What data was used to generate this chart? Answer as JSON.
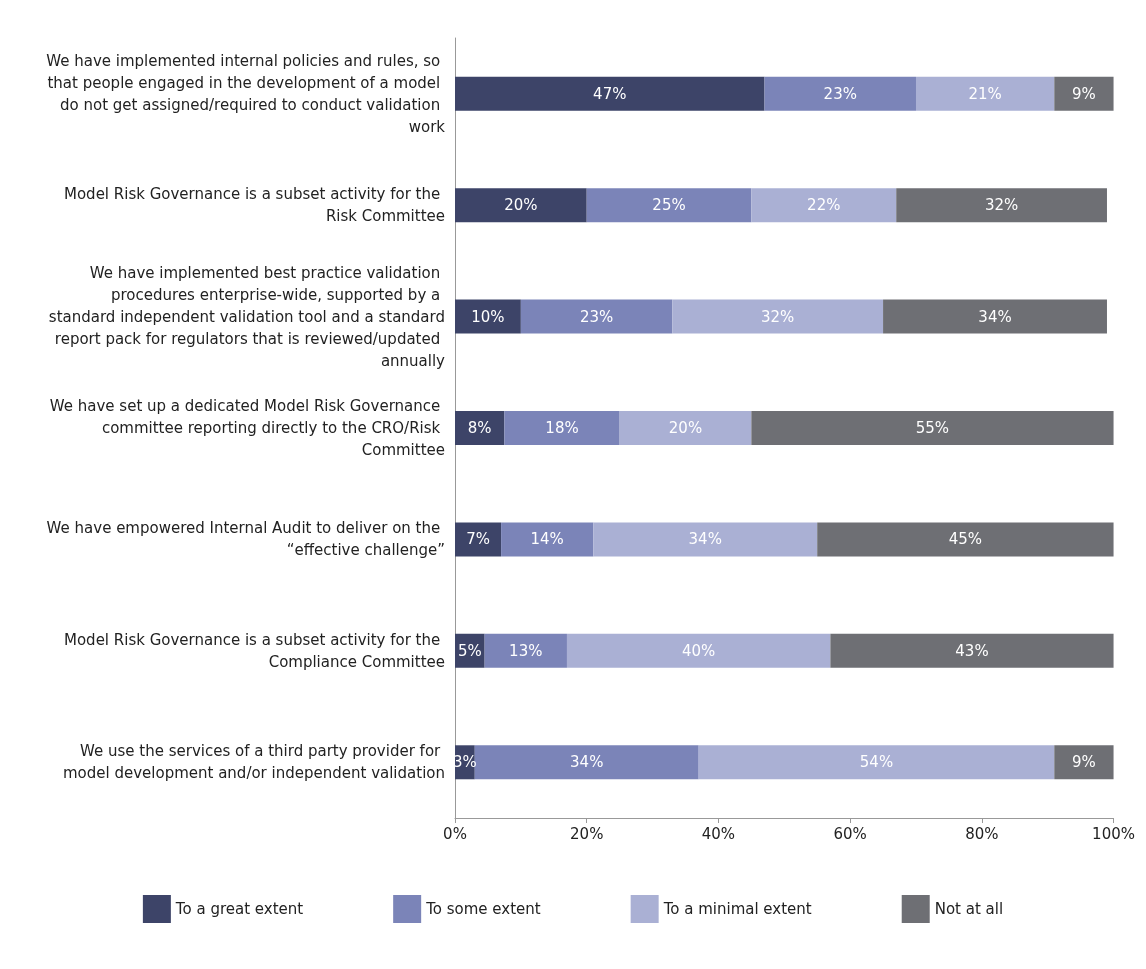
{
  "chart_data": {
    "type": "bar",
    "orientation": "horizontal",
    "stacked": true,
    "categories": [
      "We have implemented internal policies and rules, so that people engaged in the development of a model do not get assigned/required to conduct validation work",
      "Model Risk Governance is a subset activity for the Risk Committee",
      "We have implemented best practice validation procedures enterprise-wide, supported by a standard independent validation tool and a standard report pack for regulators that is reviewed/updated annually",
      "We have set up a dedicated Model Risk Governance committee reporting directly to the CRO/Risk Committee",
      "We have empowered Internal Audit to deliver on the “effective challenge”",
      "Model Risk Governance is a subset activity for the Compliance Committee",
      "We use the services of a third party provider for model development and/or independent validation"
    ],
    "series": [
      {
        "name": "To a great extent",
        "color": "#3d4468",
        "values": [
          47,
          20,
          10,
          7.5,
          7,
          4.5,
          3
        ],
        "value_labels": [
          "47%",
          "20%",
          "10%",
          "8%",
          "7%",
          "5%",
          "3%"
        ]
      },
      {
        "name": "To some extent",
        "color": "#7b84b8",
        "values": [
          23,
          25,
          23,
          17.5,
          14,
          12.5,
          34
        ],
        "value_labels": [
          "23%",
          "25%",
          "23%",
          "18%",
          "14%",
          "13%",
          "34%"
        ]
      },
      {
        "name": "To a minimal extent",
        "color": "#aab0d4",
        "values": [
          21,
          22,
          32,
          20,
          34,
          40,
          54
        ],
        "value_labels": [
          "21%",
          "22%",
          "32%",
          "20%",
          "34%",
          "40%",
          "54%"
        ]
      },
      {
        "name": "Not at all",
        "color": "#6e6f74",
        "values": [
          9,
          32,
          34,
          55,
          45,
          43,
          9
        ],
        "value_labels": [
          "9%",
          "32%",
          "34%",
          "55%",
          "45%",
          "43%",
          "9%"
        ]
      }
    ],
    "xlim": [
      0,
      100
    ],
    "xticks": [
      {
        "value": 0,
        "label": "0%"
      },
      {
        "value": 20,
        "label": "20%"
      },
      {
        "value": 40,
        "label": "40%"
      },
      {
        "value": 60,
        "label": "60%"
      },
      {
        "value": 80,
        "label": "80%"
      },
      {
        "value": 100,
        "label": "100%"
      }
    ],
    "grid": false,
    "legend": "bottom"
  }
}
